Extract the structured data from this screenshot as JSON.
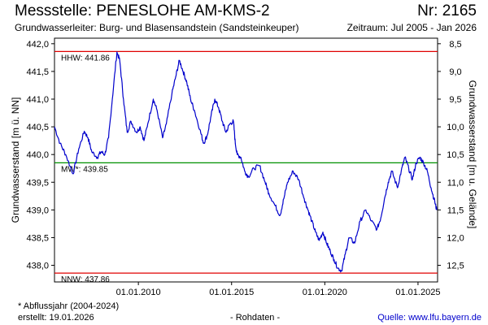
{
  "header": {
    "title": "Messstelle: PENESLOHE AM-KMS-2",
    "number": "Nr: 2165",
    "aquifer": "Grundwasserleiter:  Burg- und Blasensandstein (Sandsteinkeuper)",
    "period": "Zeitraum: Jul 2005 - Jan 2026"
  },
  "footer": {
    "note": "* Abflussjahr (2004-2024)",
    "created": "erstellt:  19.01.2026",
    "raw": "- Rohdaten -",
    "source": "Quelle: www.lfu.bayern.de"
  },
  "chart_data": {
    "type": "line",
    "ylabel": "Grundwasserstand [m ü. NN]",
    "y2label": "Grundwasserstand [m u. Gelände]",
    "ylim": [
      437.7,
      442.1
    ],
    "y_ticks": [
      442.0,
      441.5,
      441.0,
      440.5,
      440.0,
      439.5,
      439.0,
      438.5,
      438.0
    ],
    "y_tick_labels": [
      "442,0",
      "441,5",
      "441,0",
      "440,5",
      "440,0",
      "439,5",
      "439,0",
      "438,5",
      "438,0"
    ],
    "y2_ticks": [
      8.5,
      9.0,
      9.5,
      10.0,
      10.5,
      11.0,
      11.5,
      12.0,
      12.5
    ],
    "y2_tick_labels": [
      "8,5",
      "9,0",
      "9,5",
      "10,0",
      "10,5",
      "11,0",
      "11,5",
      "12,0",
      "12,5"
    ],
    "y2_offset": 450.5,
    "xlim": [
      2005.5,
      2026.05
    ],
    "x_ticks": [
      2010,
      2015,
      2020,
      2025
    ],
    "x_tick_labels": [
      "01.01.2010",
      "01.01.2015",
      "01.01.2020",
      "01.01.2025"
    ],
    "reference_lines": [
      {
        "label": "HHW: 441.86",
        "value": 441.86,
        "color": "#e00000"
      },
      {
        "label": "MW*: 439.85",
        "value": 439.85,
        "color": "#009000"
      },
      {
        "label": "NNW: 437.86",
        "value": 437.86,
        "color": "#e00000"
      }
    ],
    "series": [
      {
        "color": "#0000cc",
        "points": [
          [
            2005.5,
            440.5
          ],
          [
            2005.8,
            440.2
          ],
          [
            2006.1,
            440.0
          ],
          [
            2006.5,
            439.65
          ],
          [
            2006.8,
            440.1
          ],
          [
            2007.1,
            440.42
          ],
          [
            2007.3,
            440.3
          ],
          [
            2007.5,
            440.05
          ],
          [
            2007.8,
            439.95
          ],
          [
            2008.0,
            440.05
          ],
          [
            2008.2,
            440.0
          ],
          [
            2008.4,
            440.3
          ],
          [
            2008.6,
            441.0
          ],
          [
            2008.85,
            441.85
          ],
          [
            2009.0,
            441.7
          ],
          [
            2009.2,
            441.0
          ],
          [
            2009.4,
            440.4
          ],
          [
            2009.6,
            440.6
          ],
          [
            2009.9,
            440.4
          ],
          [
            2010.1,
            440.5
          ],
          [
            2010.3,
            440.25
          ],
          [
            2010.5,
            440.55
          ],
          [
            2010.8,
            441.0
          ],
          [
            2011.0,
            440.8
          ],
          [
            2011.3,
            440.3
          ],
          [
            2011.5,
            440.55
          ],
          [
            2011.8,
            441.1
          ],
          [
            2012.0,
            441.4
          ],
          [
            2012.2,
            441.7
          ],
          [
            2012.4,
            441.5
          ],
          [
            2012.6,
            441.3
          ],
          [
            2012.8,
            441.0
          ],
          [
            2013.0,
            440.8
          ],
          [
            2013.3,
            440.45
          ],
          [
            2013.5,
            440.2
          ],
          [
            2013.7,
            440.35
          ],
          [
            2013.9,
            440.7
          ],
          [
            2014.1,
            441.0
          ],
          [
            2014.3,
            440.85
          ],
          [
            2014.5,
            440.6
          ],
          [
            2014.7,
            440.4
          ],
          [
            2014.9,
            440.55
          ],
          [
            2015.1,
            440.6
          ],
          [
            2015.2,
            440.2
          ],
          [
            2015.3,
            440.0
          ],
          [
            2015.5,
            439.95
          ],
          [
            2015.7,
            439.7
          ],
          [
            2015.9,
            439.6
          ],
          [
            2016.2,
            439.75
          ],
          [
            2016.5,
            439.8
          ],
          [
            2016.8,
            439.5
          ],
          [
            2017.0,
            439.3
          ],
          [
            2017.3,
            439.1
          ],
          [
            2017.6,
            438.9
          ],
          [
            2017.8,
            439.2
          ],
          [
            2018.0,
            439.5
          ],
          [
            2018.3,
            439.7
          ],
          [
            2018.6,
            439.55
          ],
          [
            2018.9,
            439.2
          ],
          [
            2019.1,
            439.0
          ],
          [
            2019.3,
            438.8
          ],
          [
            2019.5,
            438.6
          ],
          [
            2019.7,
            438.45
          ],
          [
            2019.9,
            438.6
          ],
          [
            2020.1,
            438.4
          ],
          [
            2020.3,
            438.25
          ],
          [
            2020.5,
            438.1
          ],
          [
            2020.7,
            437.95
          ],
          [
            2020.9,
            437.9
          ],
          [
            2021.1,
            438.2
          ],
          [
            2021.3,
            438.5
          ],
          [
            2021.6,
            438.4
          ],
          [
            2021.9,
            438.8
          ],
          [
            2022.2,
            439.0
          ],
          [
            2022.5,
            438.8
          ],
          [
            2022.8,
            438.65
          ],
          [
            2023.0,
            438.85
          ],
          [
            2023.2,
            439.2
          ],
          [
            2023.4,
            439.5
          ],
          [
            2023.6,
            439.7
          ],
          [
            2023.9,
            439.4
          ],
          [
            2024.1,
            439.7
          ],
          [
            2024.3,
            439.95
          ],
          [
            2024.5,
            439.75
          ],
          [
            2024.7,
            439.55
          ],
          [
            2024.9,
            439.85
          ],
          [
            2025.1,
            439.95
          ],
          [
            2025.3,
            439.85
          ],
          [
            2025.5,
            439.7
          ],
          [
            2025.7,
            439.4
          ],
          [
            2025.9,
            439.15
          ],
          [
            2026.0,
            439.0
          ]
        ]
      }
    ]
  }
}
